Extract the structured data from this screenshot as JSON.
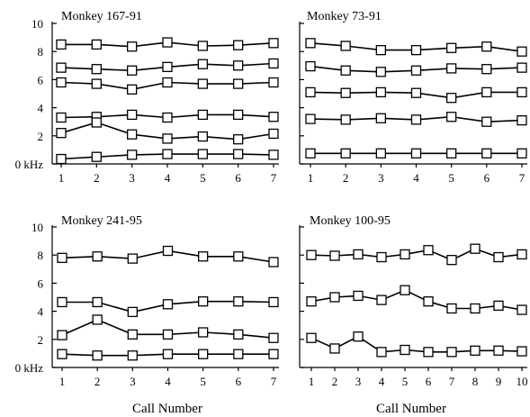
{
  "chart_data": [
    {
      "type": "line",
      "title": "Monkey 167-91",
      "xlabel": "",
      "ylabel": "",
      "x": [
        1,
        2,
        3,
        4,
        5,
        6,
        7
      ],
      "xticks": [
        "1",
        "2",
        "3",
        "4",
        "5",
        "6",
        "7"
      ],
      "yticks": [
        "0 kHz",
        "2",
        "4",
        "6",
        "8",
        "10"
      ],
      "ylim": [
        0,
        10
      ],
      "series": [
        {
          "values": [
            8.5,
            8.5,
            8.35,
            8.65,
            8.4,
            8.45,
            8.6
          ]
        },
        {
          "values": [
            6.85,
            6.75,
            6.65,
            6.9,
            7.1,
            7.0,
            7.15
          ]
        },
        {
          "values": [
            5.8,
            5.7,
            5.3,
            5.8,
            5.7,
            5.7,
            5.8
          ]
        },
        {
          "values": [
            3.3,
            3.35,
            3.5,
            3.3,
            3.5,
            3.5,
            3.35
          ]
        },
        {
          "values": [
            2.2,
            2.95,
            2.1,
            1.8,
            1.95,
            1.75,
            2.15
          ]
        },
        {
          "values": [
            0.35,
            0.5,
            0.65,
            0.7,
            0.7,
            0.7,
            0.65
          ]
        }
      ]
    },
    {
      "type": "line",
      "title": "Monkey 73-91",
      "xlabel": "",
      "ylabel": "",
      "x": [
        1,
        2,
        3,
        4,
        5,
        6,
        7
      ],
      "xticks": [
        "1",
        "2",
        "3",
        "4",
        "5",
        "6",
        "7"
      ],
      "yticks": [],
      "ylim": [
        0,
        10
      ],
      "series": [
        {
          "values": [
            8.6,
            8.4,
            8.1,
            8.1,
            8.25,
            8.35,
            8.0
          ]
        },
        {
          "values": [
            6.95,
            6.65,
            6.55,
            6.65,
            6.8,
            6.75,
            6.85
          ]
        },
        {
          "values": [
            5.1,
            5.05,
            5.1,
            5.05,
            4.7,
            5.1,
            5.1
          ]
        },
        {
          "values": [
            3.2,
            3.15,
            3.25,
            3.15,
            3.35,
            3.0,
            3.1
          ]
        },
        {
          "values": [
            0.75,
            0.75,
            0.75,
            0.75,
            0.75,
            0.75,
            0.75
          ]
        }
      ]
    },
    {
      "type": "line",
      "title": "Monkey 241-95",
      "xlabel": "Call Number",
      "ylabel": "",
      "x": [
        1,
        2,
        3,
        4,
        5,
        6,
        7
      ],
      "xticks": [
        "1",
        "2",
        "3",
        "4",
        "5",
        "6",
        "7"
      ],
      "yticks": [
        "0 kHz",
        "2",
        "4",
        "6",
        "8",
        "10"
      ],
      "ylim": [
        0,
        10
      ],
      "series": [
        {
          "values": [
            7.8,
            7.9,
            7.75,
            8.3,
            7.9,
            7.9,
            7.5
          ]
        },
        {
          "values": [
            4.65,
            4.65,
            3.95,
            4.5,
            4.7,
            4.7,
            4.65
          ]
        },
        {
          "values": [
            2.3,
            3.4,
            2.35,
            2.35,
            2.5,
            2.35,
            2.1
          ]
        },
        {
          "values": [
            0.95,
            0.85,
            0.85,
            0.95,
            0.95,
            0.95,
            0.95
          ]
        }
      ]
    },
    {
      "type": "line",
      "title": "Monkey 100-95",
      "xlabel": "Call Number",
      "ylabel": "",
      "x": [
        1,
        2,
        3,
        4,
        5,
        6,
        7,
        8,
        9,
        10
      ],
      "xticks": [
        "1",
        "2",
        "3",
        "4",
        "5",
        "6",
        "7",
        "8",
        "9",
        "10"
      ],
      "yticks": [],
      "ylim": [
        0,
        10
      ],
      "series": [
        {
          "values": [
            8.0,
            7.95,
            8.05,
            7.85,
            8.05,
            8.35,
            7.65,
            8.45,
            7.85,
            8.05
          ]
        },
        {
          "values": [
            4.7,
            5.0,
            5.1,
            4.8,
            5.5,
            4.7,
            4.2,
            4.2,
            4.4,
            4.1
          ]
        },
        {
          "values": [
            2.1,
            1.35,
            2.2,
            1.1,
            1.25,
            1.1,
            1.1,
            1.2,
            1.2,
            1.15
          ]
        }
      ]
    }
  ]
}
